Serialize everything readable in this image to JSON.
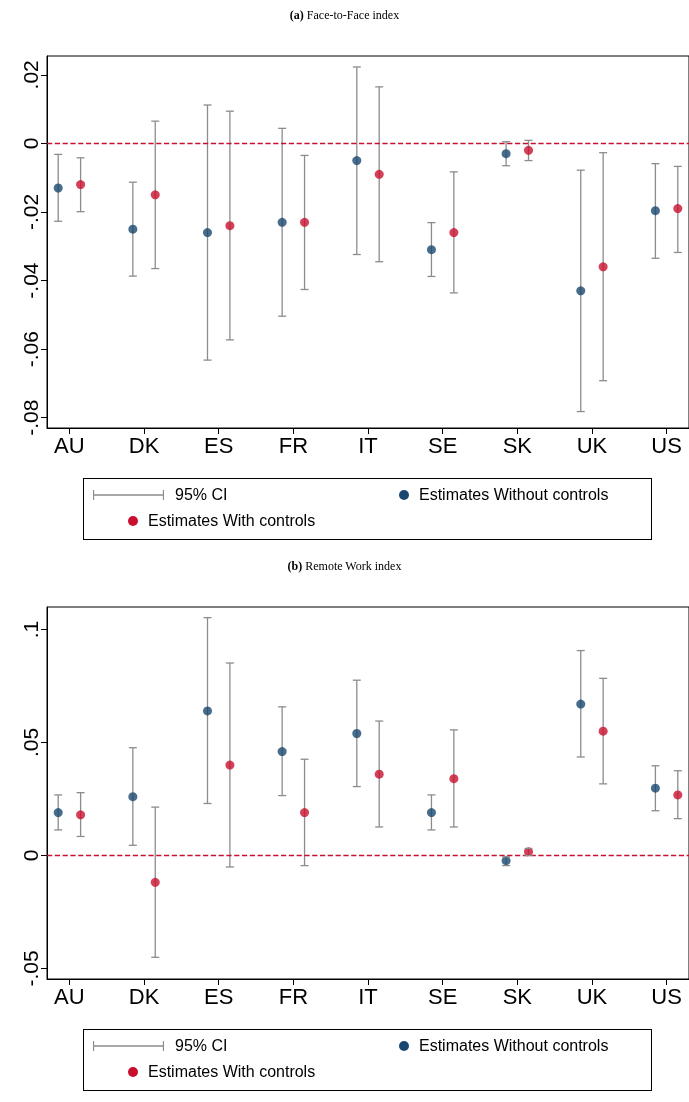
{
  "chart_data": [
    {
      "type": "scatter",
      "title": "(a) Face-to-Face index",
      "categories": [
        "AU",
        "DK",
        "ES",
        "FR",
        "IT",
        "SE",
        "SK",
        "UK",
        "US"
      ],
      "ylim": [
        -0.083,
        0.0255
      ],
      "yticks": [
        {
          "value": 0.02,
          "label": ".02"
        },
        {
          "value": 0,
          "label": "0"
        },
        {
          "value": -0.02,
          "label": "-.02"
        },
        {
          "value": -0.04,
          "label": "-.04"
        },
        {
          "value": -0.06,
          "label": "-.06"
        },
        {
          "value": -0.08,
          "label": "-.08"
        }
      ],
      "grid": false,
      "legend": "bottom",
      "marker": "circle",
      "annotations": [
        "95% CI"
      ],
      "ref_lines": [
        {
          "axis": "y",
          "value": 0,
          "color": "#c8102e",
          "line_style": "dashed"
        }
      ],
      "series": [
        {
          "name": "Estimates Without controls",
          "color": "#1a476f",
          "x": [
            "AU",
            "DK",
            "ES",
            "FR",
            "IT",
            "SE",
            "SK",
            "UK",
            "US"
          ],
          "values": [
            -0.013,
            -0.025,
            -0.026,
            -0.023,
            -0.005,
            -0.031,
            -0.003,
            -0.043,
            -0.0196
          ],
          "errors": [
            [
              -0.0227,
              -0.0032
            ],
            [
              -0.0387,
              -0.0113
            ],
            [
              -0.0632,
              0.0112
            ],
            [
              -0.0504,
              0.0044
            ],
            [
              -0.0324,
              0.0223
            ],
            [
              -0.0388,
              -0.0231
            ],
            [
              -0.0065,
              0.0005
            ],
            [
              -0.0782,
              -0.0078
            ],
            [
              -0.0335,
              -0.0059
            ]
          ]
        },
        {
          "name": "Estimates With controls",
          "color": "#c8102e",
          "x": [
            "AU",
            "DK",
            "ES",
            "FR",
            "IT",
            "SE",
            "SK",
            "UK",
            "US"
          ],
          "values": [
            -0.012,
            -0.015,
            -0.024,
            -0.023,
            -0.009,
            -0.026,
            -0.002,
            -0.036,
            -0.019
          ],
          "errors": [
            [
              -0.0199,
              -0.0042
            ],
            [
              -0.0365,
              0.0065
            ],
            [
              -0.0573,
              0.0094
            ],
            [
              -0.0426,
              -0.0035
            ],
            [
              -0.0345,
              0.0165
            ],
            [
              -0.0436,
              -0.0083
            ],
            [
              -0.005,
              0.0009
            ],
            [
              -0.0692,
              -0.0027
            ],
            [
              -0.0318,
              -0.0067
            ]
          ]
        }
      ]
    },
    {
      "type": "scatter",
      "title": "(b) Remote Work index",
      "categories": [
        "AU",
        "DK",
        "ES",
        "FR",
        "IT",
        "SE",
        "SK",
        "UK",
        "US"
      ],
      "ylim": [
        -0.0547,
        0.11
      ],
      "yticks": [
        {
          "value": 0.1,
          "label": ".1"
        },
        {
          "value": 0.05,
          "label": ".05"
        },
        {
          "value": 0,
          "label": "0"
        },
        {
          "value": -0.05,
          "label": "-.05"
        }
      ],
      "grid": false,
      "legend": "bottom",
      "marker": "circle",
      "annotations": [
        "95% CI"
      ],
      "ref_lines": [
        {
          "axis": "y",
          "value": 0,
          "color": "#c8102e",
          "line_style": "dashed"
        }
      ],
      "series": [
        {
          "name": "Estimates Without controls",
          "color": "#1a476f",
          "x": [
            "AU",
            "DK",
            "ES",
            "FR",
            "IT",
            "SE",
            "SK",
            "UK",
            "US"
          ],
          "values": [
            0.019,
            0.026,
            0.064,
            0.046,
            0.054,
            0.019,
            -0.0023,
            0.067,
            0.0298
          ],
          "errors": [
            [
              0.0113,
              0.0268
            ],
            [
              0.0045,
              0.0477
            ],
            [
              0.023,
              0.1053
            ],
            [
              0.0265,
              0.0658
            ],
            [
              0.0305,
              0.0776
            ],
            [
              0.0113,
              0.0268
            ],
            [
              -0.0045,
              -0.0006
            ],
            [
              0.0436,
              0.0907
            ],
            [
              0.0198,
              0.0397
            ]
          ]
        },
        {
          "name": "Estimates With controls",
          "color": "#c8102e",
          "x": [
            "AU",
            "DK",
            "ES",
            "FR",
            "IT",
            "SE",
            "SK",
            "UK",
            "US"
          ],
          "values": [
            0.018,
            -0.0119,
            0.04,
            0.019,
            0.036,
            0.034,
            0.0016,
            0.055,
            0.0268
          ],
          "errors": [
            [
              0.0084,
              0.0278
            ],
            [
              -0.0451,
              0.0214
            ],
            [
              -0.0051,
              0.0852
            ],
            [
              -0.0045,
              0.0426
            ],
            [
              0.0126,
              0.0595
            ],
            [
              0.0126,
              0.0556
            ],
            [
              0,
              0.0031
            ],
            [
              0.0317,
              0.0784
            ],
            [
              0.0163,
              0.0375
            ]
          ]
        }
      ]
    }
  ]
}
